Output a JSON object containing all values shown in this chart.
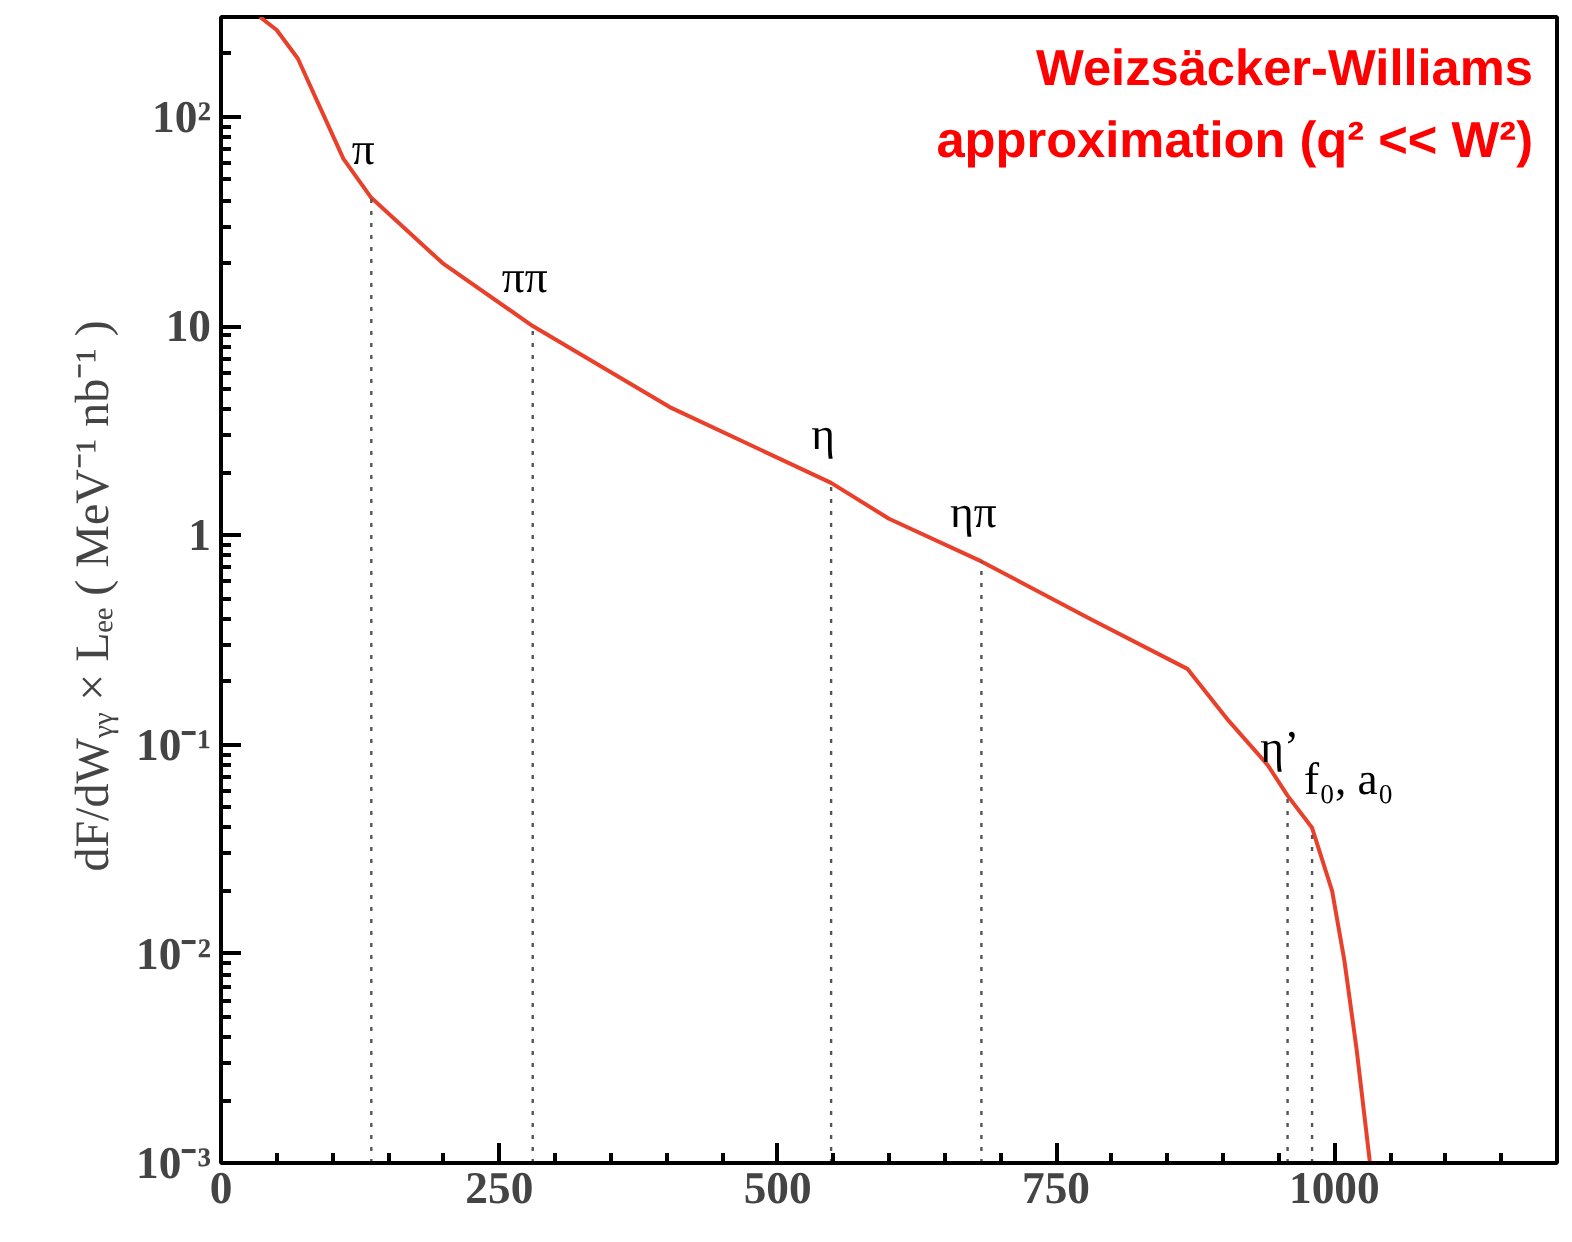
{
  "chart_data": {
    "type": "line",
    "ylabel": "dF/dWᵧᵧ × Lₑₑ  ( MeV⁻¹ nb⁻¹ )",
    "annotations": [
      "Weizsäcker-Williams",
      "approximation (q² << W²)"
    ],
    "series": [
      {
        "color": "#e8402a",
        "x": [
          35,
          50,
          69,
          87,
          110,
          135,
          199,
          280,
          403,
          548,
          600,
          683,
          780,
          868,
          905,
          940,
          958,
          980,
          998,
          1009,
          1020,
          1032
        ],
        "values": [
          300,
          260,
          190,
          117,
          63,
          41,
          20,
          10,
          4.1,
          1.78,
          1.2,
          0.75,
          0.4,
          0.23,
          0.13,
          0.08,
          0.057,
          0.04,
          0.02,
          0.0093,
          0.0035,
          0.001
        ]
      }
    ],
    "ref_lines": [
      {
        "axis": "x",
        "value": 135,
        "label": "π",
        "line_style": "dotted",
        "color": "#555555"
      },
      {
        "axis": "x",
        "value": 280,
        "label": "ππ",
        "line_style": "dotted",
        "color": "#555555"
      },
      {
        "axis": "x",
        "value": 548,
        "label": "η",
        "line_style": "dotted",
        "color": "#555555"
      },
      {
        "axis": "x",
        "value": 683,
        "label": "ηπ",
        "line_style": "dotted",
        "color": "#555555"
      },
      {
        "axis": "x",
        "value": 958,
        "label": "η’",
        "line_style": "dotted",
        "color": "#555555"
      },
      {
        "axis": "x",
        "value": 980,
        "label": "f₀, a₀",
        "line_style": "dotted",
        "color": "#555555"
      }
    ],
    "log": "y",
    "grid": false,
    "marker": "none",
    "line_style": "solid",
    "xlim": [
      0,
      1200
    ],
    "ylim": [
      0.001,
      300
    ],
    "xticks": [
      0,
      250,
      500,
      750,
      1000
    ],
    "yticks": [
      {
        "value": 0.001,
        "label": "10⁻³"
      },
      {
        "value": 0.01,
        "label": "10⁻²"
      },
      {
        "value": 0.1,
        "label": "10⁻¹"
      },
      {
        "value": 1,
        "label": "1"
      },
      {
        "value": 10,
        "label": "10"
      },
      {
        "value": 100,
        "label": "10²"
      }
    ]
  }
}
